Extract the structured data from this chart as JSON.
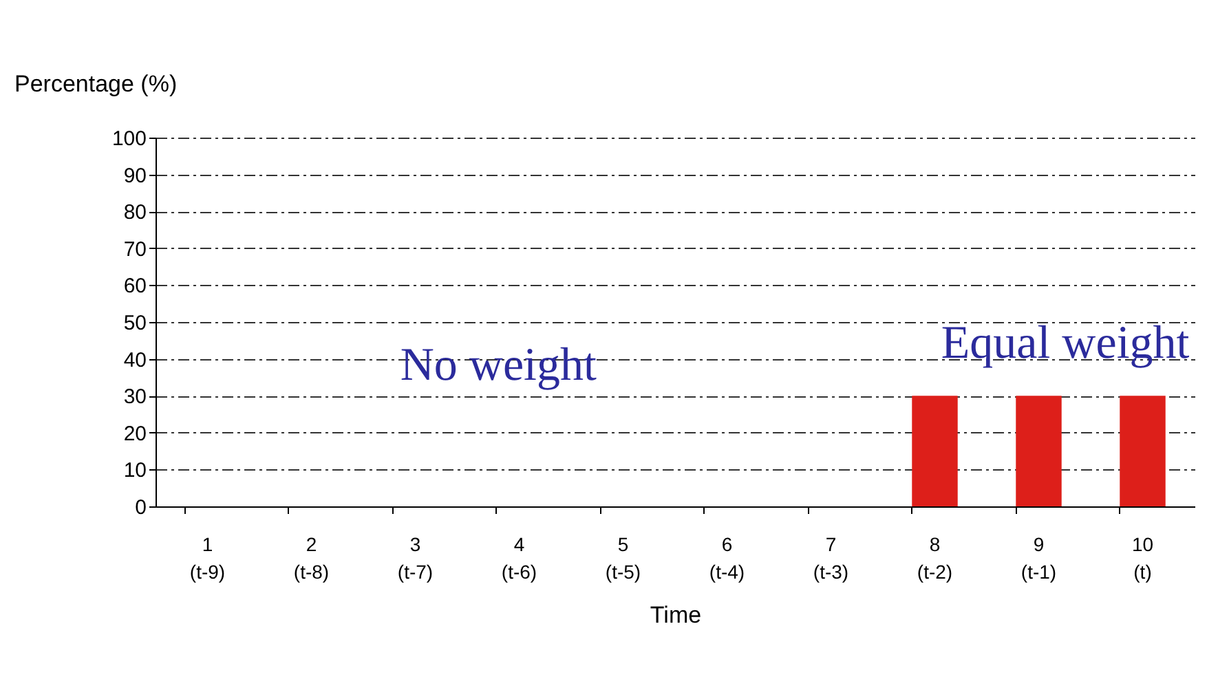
{
  "chart_data": {
    "type": "bar",
    "xlabel": "Time",
    "ylabel": "Percentage (%)",
    "categories": [
      "1\n(t-9)",
      "2\n(t-8)",
      "3\n(t-7)",
      "4\n(t-6)",
      "5\n(t-5)",
      "6\n(t-4)",
      "7\n(t-3)",
      "8\n(t-2)",
      "9\n(t-1)",
      "10\n(t)"
    ],
    "values": [
      0,
      0,
      0,
      0,
      0,
      0,
      0,
      30,
      30,
      30
    ],
    "color": "#dd1f1a",
    "ylim": [
      0,
      100
    ],
    "yticks": [
      0,
      10,
      20,
      30,
      40,
      50,
      60,
      70,
      80,
      90,
      100
    ],
    "grid": "y",
    "annotations": [
      "No weight",
      "Equal weight"
    ]
  }
}
